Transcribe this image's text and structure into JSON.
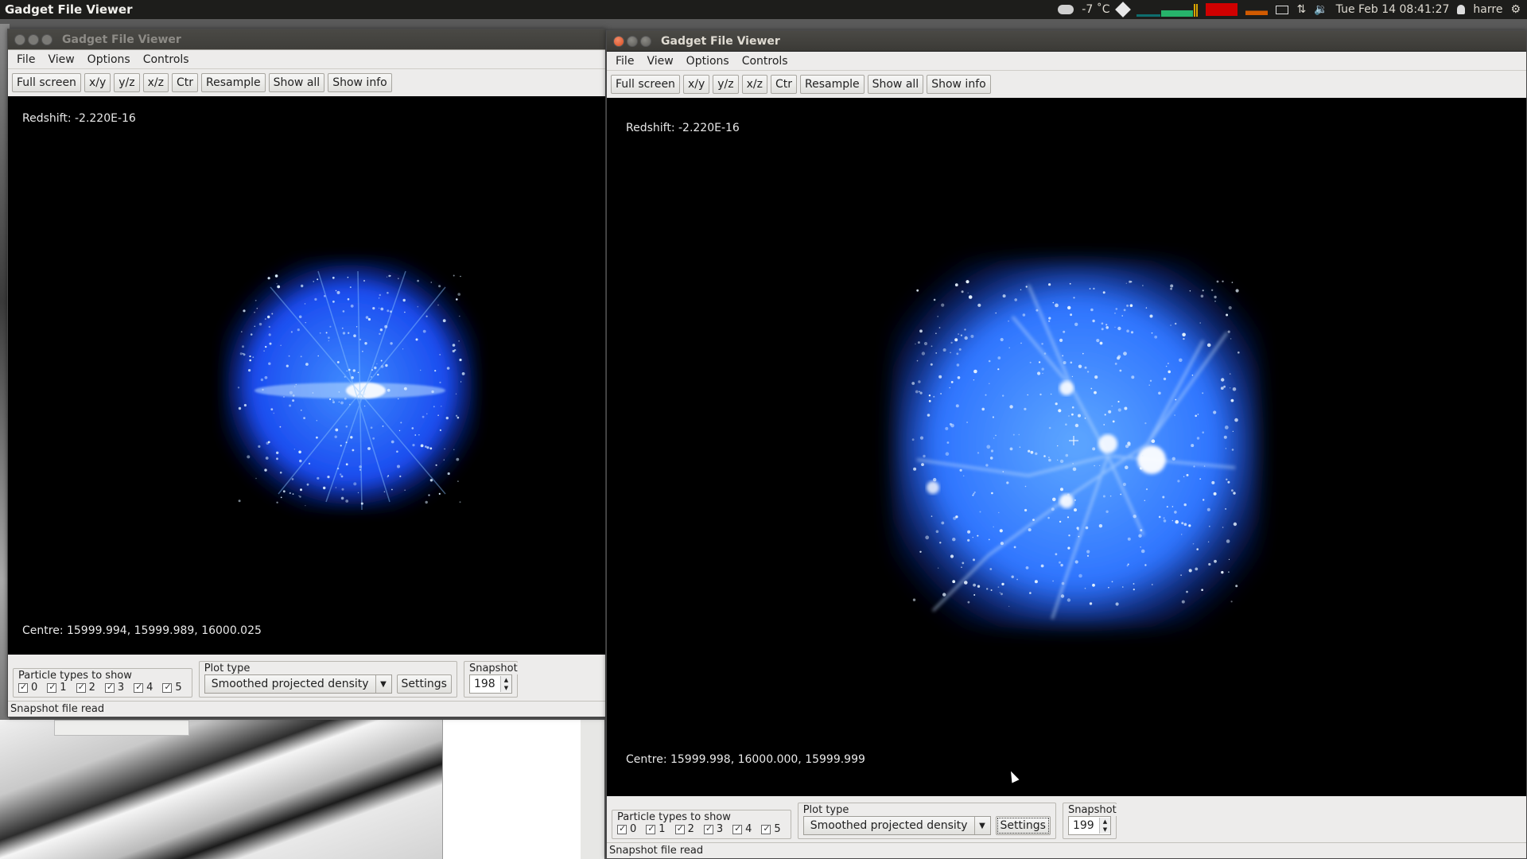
{
  "topbar": {
    "app_title": "Gadget File Viewer",
    "weather": "-7 ˚C",
    "datetime": "Tue Feb 14 08:41:27",
    "user": "harre"
  },
  "window_left": {
    "title": "Gadget File Viewer",
    "menu": [
      "File",
      "View",
      "Options",
      "Controls"
    ],
    "toolbar": [
      "Full screen",
      "x/y",
      "y/z",
      "x/z",
      "Ctr",
      "Resample",
      "Show all",
      "Show info"
    ],
    "redshift": "Redshift: -2.220E-16",
    "centre": "Centre: 15999.994, 15999.989, 16000.025",
    "particle_group_label": "Particle types to show",
    "particle_types": [
      "0",
      "1",
      "2",
      "3",
      "4",
      "5"
    ],
    "plot_type_label": "Plot type",
    "plot_type_value": "Smoothed projected density",
    "settings_label": "Settings",
    "snapshot_label": "Snapshot",
    "snapshot_value": "198",
    "status": "Snapshot file read"
  },
  "window_right": {
    "title": "Gadget File Viewer",
    "menu": [
      "File",
      "View",
      "Options",
      "Controls"
    ],
    "toolbar": [
      "Full screen",
      "x/y",
      "y/z",
      "x/z",
      "Ctr",
      "Resample",
      "Show all",
      "Show info"
    ],
    "redshift": "Redshift: -2.220E-16",
    "centre": "Centre: 15999.998, 16000.000, 15999.999",
    "particle_group_label": "Particle types to show",
    "particle_types": [
      "0",
      "1",
      "2",
      "3",
      "4",
      "5"
    ],
    "plot_type_label": "Plot type",
    "plot_type_value": "Smoothed projected density",
    "settings_label": "Settings",
    "snapshot_label": "Snapshot",
    "snapshot_value": "199",
    "status": "Snapshot file read"
  },
  "colors": {
    "density_core": "#ffffff",
    "density_mid": "#4aa0ff",
    "density_edge": "#0b2cc8"
  }
}
